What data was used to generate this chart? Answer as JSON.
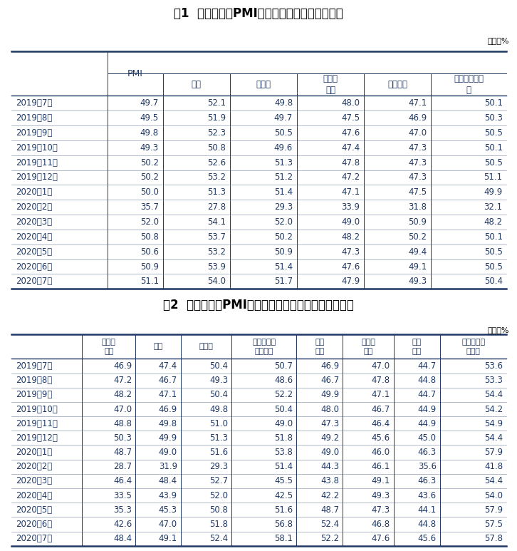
{
  "title1": "表1  中国制造业PMI及构成指数（经季节调整）",
  "title2": "表2  中国制造业PMI其他相关指标情况（经季节调整）",
  "unit": "单位：%",
  "table1_col0_header": "",
  "table1_pmi_header": "PMI",
  "table1_sub_headers": [
    "生产",
    "新订单",
    "原材料\n库存",
    "从业人员",
    "供应商配送时\n间"
  ],
  "table1_rows": [
    [
      "2019年7月",
      "49.7",
      "52.1",
      "49.8",
      "48.0",
      "47.1",
      "50.1"
    ],
    [
      "2019年8月",
      "49.5",
      "51.9",
      "49.7",
      "47.5",
      "46.9",
      "50.3"
    ],
    [
      "2019年9月",
      "49.8",
      "52.3",
      "50.5",
      "47.6",
      "47.0",
      "50.5"
    ],
    [
      "2019年10月",
      "49.3",
      "50.8",
      "49.6",
      "47.4",
      "47.3",
      "50.1"
    ],
    [
      "2019年11月",
      "50.2",
      "52.6",
      "51.3",
      "47.8",
      "47.3",
      "50.5"
    ],
    [
      "2019年12月",
      "50.2",
      "53.2",
      "51.2",
      "47.2",
      "47.3",
      "51.1"
    ],
    [
      "2020年1月",
      "50.0",
      "51.3",
      "51.4",
      "47.1",
      "47.5",
      "49.9"
    ],
    [
      "2020年2月",
      "35.7",
      "27.8",
      "29.3",
      "33.9",
      "31.8",
      "32.1"
    ],
    [
      "2020年3月",
      "52.0",
      "54.1",
      "52.0",
      "49.0",
      "50.9",
      "48.2"
    ],
    [
      "2020年4月",
      "50.8",
      "53.7",
      "50.2",
      "48.2",
      "50.2",
      "50.1"
    ],
    [
      "2020年5月",
      "50.6",
      "53.2",
      "50.9",
      "47.3",
      "49.4",
      "50.5"
    ],
    [
      "2020年6月",
      "50.9",
      "53.9",
      "51.4",
      "47.6",
      "49.1",
      "50.5"
    ],
    [
      "2020年7月",
      "51.1",
      "54.0",
      "51.7",
      "47.9",
      "49.3",
      "50.4"
    ]
  ],
  "table2_headers": [
    "新出口\n订单",
    "进口",
    "采购量",
    "主要原材料\n购进价格",
    "出厂\n价格",
    "产成品\n库存",
    "在手\n订单",
    "生产经营活\n动预期"
  ],
  "table2_rows": [
    [
      "2019年7月",
      "46.9",
      "47.4",
      "50.4",
      "50.7",
      "46.9",
      "47.0",
      "44.7",
      "53.6"
    ],
    [
      "2019年8月",
      "47.2",
      "46.7",
      "49.3",
      "48.6",
      "46.7",
      "47.8",
      "44.8",
      "53.3"
    ],
    [
      "2019年9月",
      "48.2",
      "47.1",
      "50.4",
      "52.2",
      "49.9",
      "47.1",
      "44.7",
      "54.4"
    ],
    [
      "2019年10月",
      "47.0",
      "46.9",
      "49.8",
      "50.4",
      "48.0",
      "46.7",
      "44.9",
      "54.2"
    ],
    [
      "2019年11月",
      "48.8",
      "49.8",
      "51.0",
      "49.0",
      "47.3",
      "46.4",
      "44.9",
      "54.9"
    ],
    [
      "2019年12月",
      "50.3",
      "49.9",
      "51.3",
      "51.8",
      "49.2",
      "45.6",
      "45.0",
      "54.4"
    ],
    [
      "2020年1月",
      "48.7",
      "49.0",
      "51.6",
      "53.8",
      "49.0",
      "46.0",
      "46.3",
      "57.9"
    ],
    [
      "2020年2月",
      "28.7",
      "31.9",
      "29.3",
      "51.4",
      "44.3",
      "46.1",
      "35.6",
      "41.8"
    ],
    [
      "2020年3月",
      "46.4",
      "48.4",
      "52.7",
      "45.5",
      "43.8",
      "49.1",
      "46.3",
      "54.4"
    ],
    [
      "2020年4月",
      "33.5",
      "43.9",
      "52.0",
      "42.5",
      "42.2",
      "49.3",
      "43.6",
      "54.0"
    ],
    [
      "2020年5月",
      "35.3",
      "45.3",
      "50.8",
      "51.6",
      "48.7",
      "47.3",
      "44.1",
      "57.9"
    ],
    [
      "2020年6月",
      "42.6",
      "47.0",
      "51.8",
      "56.8",
      "52.4",
      "46.8",
      "44.8",
      "57.5"
    ],
    [
      "2020年7月",
      "48.4",
      "49.1",
      "52.4",
      "58.1",
      "52.2",
      "47.6",
      "45.6",
      "57.8"
    ]
  ],
  "bg_color": "#ffffff",
  "header_text_color": "#1f3864",
  "data_text_color": "#1f3864",
  "title_color": "#000000",
  "line_color": "#1f3864",
  "unit_color": "#000000",
  "thick_lw": 1.8,
  "thin_lw": 0.7,
  "data_lw": 0.4
}
